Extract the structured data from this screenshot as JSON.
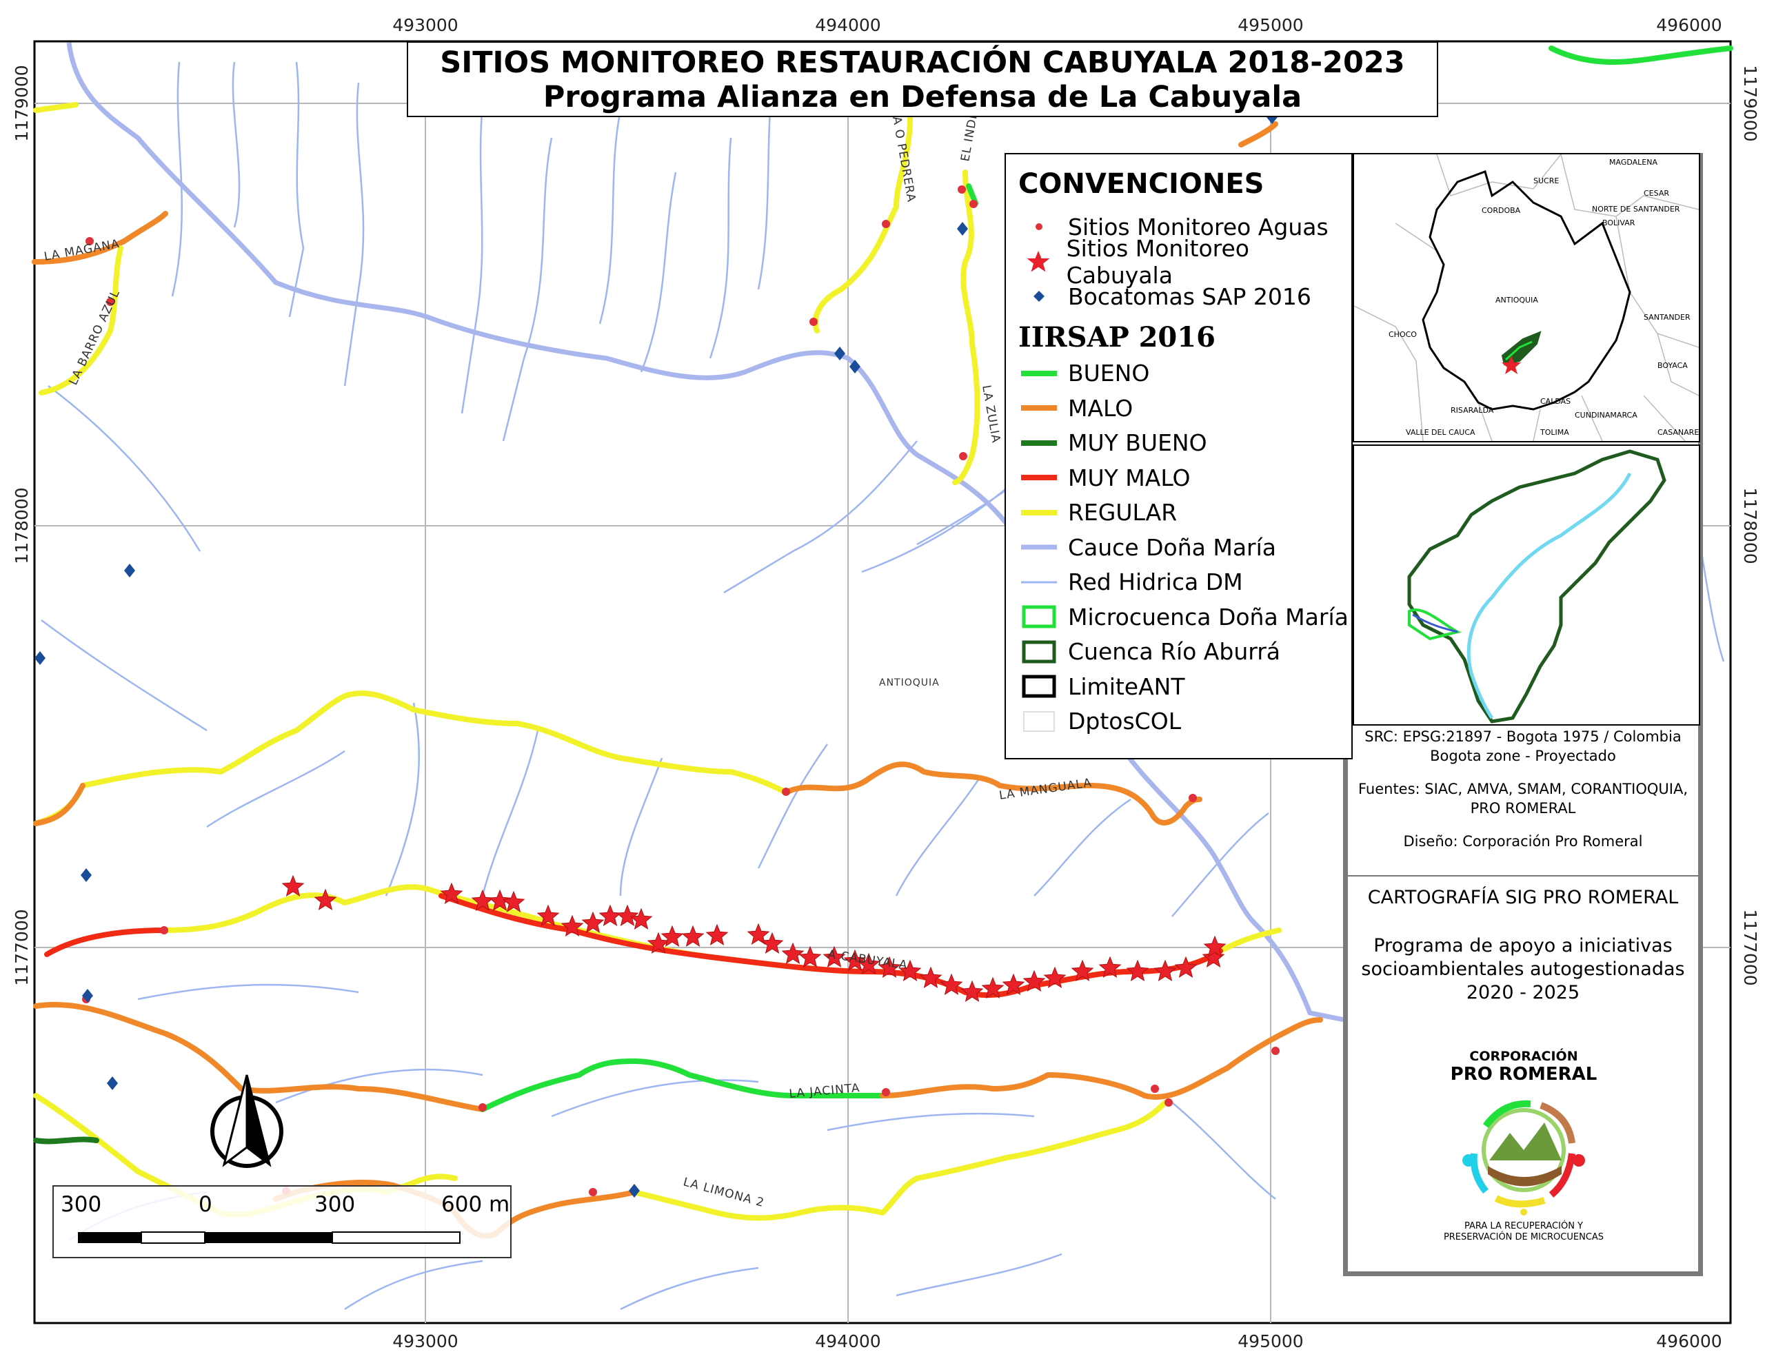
{
  "title": {
    "line1": "SITIOS MONITOREO RESTAURACIÓN CABUYALA 2018-2023",
    "line2": "Programa Alianza en Defensa de La Cabuyala"
  },
  "coordinates": {
    "easting": [
      "493000",
      "494000",
      "495000",
      "496000"
    ],
    "northing": [
      "1179000",
      "1178000",
      "1177000"
    ]
  },
  "map_labels": {
    "region": "ANTIOQUIA",
    "streams": [
      "LA MAGANA",
      "LA BARRO AZUL",
      "LA MANGUALA",
      "LA JACINTA",
      "LA LIMONA 2",
      "LA ZULIA",
      "EL INDIO",
      "A O PEDRERA",
      "A CABUYALA"
    ]
  },
  "legend": {
    "heading": "CONVENCIONES",
    "points": [
      {
        "label": "Sitios Monitoreo Aguas",
        "symbol": "red-dot-icon",
        "color": "#e0303a"
      },
      {
        "label": "Sitios Monitoreo Cabuyala",
        "symbol": "red-star-icon",
        "color": "#e8202a"
      },
      {
        "label": "Bocatomas SAP 2016",
        "symbol": "blue-diamond-icon",
        "color": "#1a4d99"
      }
    ],
    "iirsap_heading": "IIRSAP 2016",
    "lines": [
      {
        "label": "BUENO",
        "color": "#22e03a",
        "style": "line"
      },
      {
        "label": "MALO",
        "color": "#f0882a",
        "style": "line"
      },
      {
        "label": "MUY BUENO",
        "color": "#1f7a1f",
        "style": "line"
      },
      {
        "label": "MUY MALO",
        "color": "#f02a14",
        "style": "line"
      },
      {
        "label": "REGULAR",
        "color": "#f2f22a",
        "style": "line"
      },
      {
        "label": "Cauce Doña María",
        "color": "#a9b6ee",
        "style": "thick-line"
      },
      {
        "label": "Red Hidrica DM",
        "color": "#9db5f0",
        "style": "thin-line"
      },
      {
        "label": "Microcuenca Doña María",
        "color": "#22e03a",
        "style": "box"
      },
      {
        "label": "Cuenca Río Aburrá",
        "color": "#1f5a1f",
        "style": "box"
      },
      {
        "label": "LimiteANT",
        "color": "#000000",
        "style": "box"
      },
      {
        "label": "DptosCOL",
        "color": "#dddddd",
        "style": "box"
      }
    ]
  },
  "inset_map": {
    "departments": [
      "MAGDALENA",
      "SUCRE",
      "CESAR",
      "CORDOBA",
      "NORTE DE SANTANDER",
      "BOLIVAR",
      "ANTIOQUIA",
      "SANTANDER",
      "CHOCO",
      "BOYACA",
      "RISARALDA",
      "CALDAS",
      "CUNDINAMARCA",
      "VALLE DEL CAUCA",
      "TOLIMA",
      "CASANARE"
    ]
  },
  "info": {
    "src_line1": "SRC: EPSG:21897 - Bogota 1975 / Colombia",
    "src_line2": "Bogota zone - Proyectado",
    "sources_line1": "Fuentes: SIAC, AMVA, SMAM, CORANTIOQUIA,",
    "sources_line2": "PRO ROMERAL",
    "design": "Diseño: Corporación Pro Romeral"
  },
  "cartography": {
    "heading": "CARTOGRAFÍA SIG PRO ROMERAL",
    "program_line1": "Programa de apoyo a iniciativas",
    "program_line2": "socioambientales autogestionadas",
    "program_line3": "2020 - 2025"
  },
  "logo": {
    "org_line1": "CORPORACIÓN",
    "org_line2": "PRO ROMERAL",
    "tagline1": "PARA LA RECUPERACIÓN Y",
    "tagline2": "PRESERVACIÓN DE MICROCUENCAS"
  },
  "scale_bar": {
    "labels": [
      "300",
      "0",
      "300",
      "600 m"
    ]
  }
}
